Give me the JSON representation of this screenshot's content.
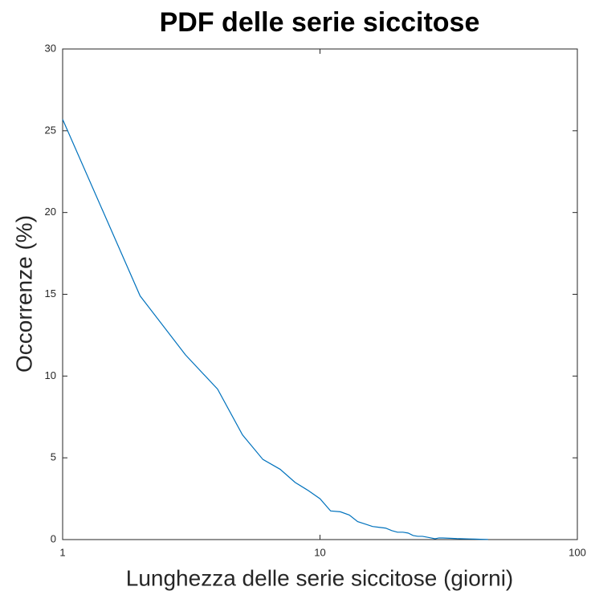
{
  "chart_data": {
    "type": "line",
    "title": "PDF delle serie siccitose",
    "x_label": "Lunghezza delle serie siccitose (giorni)",
    "y_label": "Occorrenze (%)",
    "x_scale": "log",
    "series": [
      {
        "color": "#0072bd",
        "x": [
          1,
          2,
          3,
          4,
          5,
          6,
          7,
          8,
          9,
          10,
          11,
          12,
          13,
          14,
          15,
          16,
          17,
          18,
          19,
          20,
          21,
          22,
          23,
          24,
          25,
          26,
          27,
          28,
          29,
          30,
          32,
          34,
          36,
          38,
          40,
          42,
          45
        ],
        "values": [
          25.7,
          14.9,
          11.3,
          9.2,
          6.4,
          4.9,
          4.3,
          3.5,
          3.0,
          2.5,
          1.75,
          1.7,
          1.5,
          1.1,
          0.95,
          0.8,
          0.75,
          0.7,
          0.55,
          0.45,
          0.45,
          0.4,
          0.25,
          0.2,
          0.2,
          0.15,
          0.1,
          0.05,
          0.1,
          0.1,
          0.08,
          0.06,
          0.05,
          0.04,
          0.03,
          0.02,
          0.01
        ]
      }
    ],
    "xlim": [
      1,
      100
    ],
    "xticks": [
      1,
      10,
      100
    ],
    "ylim": [
      0,
      30
    ],
    "yticks": [
      0,
      5,
      10,
      15,
      20,
      25,
      30
    ]
  }
}
